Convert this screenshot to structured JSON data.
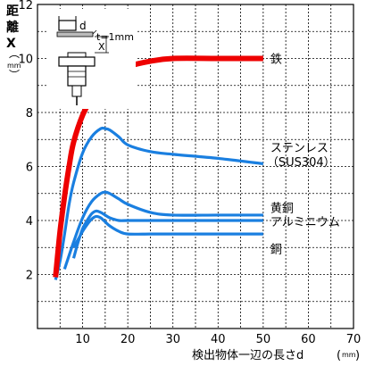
{
  "chart_data": {
    "type": "line",
    "ylabel_chars": [
      "距",
      "離",
      "X"
    ],
    "ylabel_unit": "mm",
    "xlabel_text": "検出物体一辺の長さd",
    "xlabel_unit": "mm",
    "inset_label": "t=1mm",
    "inset_d": "d",
    "inset_x": "X",
    "xlim": [
      0,
      70
    ],
    "ylim": [
      0,
      12
    ],
    "xticks": [
      10,
      20,
      30,
      40,
      50,
      60,
      70
    ],
    "yticks": [
      2,
      4,
      6,
      8,
      10,
      12
    ],
    "grid": true,
    "series": [
      {
        "name": "鉄",
        "color": "#ee0000",
        "x": [
          4,
          5,
          6,
          7,
          8,
          10,
          12,
          15,
          18,
          20,
          25,
          30,
          40,
          50
        ],
        "y": [
          1.9,
          3.6,
          4.9,
          6.0,
          6.9,
          7.9,
          8.5,
          9.1,
          9.5,
          9.7,
          9.9,
          10.0,
          10.0,
          10.0
        ]
      },
      {
        "name": "ステンレス",
        "name2": "（SUS304）",
        "color": "#1a7fe0",
        "x": [
          4,
          5,
          6,
          7,
          8,
          10,
          12,
          14,
          15,
          16,
          18,
          20,
          25,
          30,
          40,
          50
        ],
        "y": [
          1.8,
          2.5,
          3.5,
          4.6,
          5.4,
          6.5,
          7.1,
          7.4,
          7.4,
          7.35,
          7.1,
          6.8,
          6.55,
          6.45,
          6.3,
          6.1
        ]
      },
      {
        "name": "黄銅",
        "color": "#1a7fe0",
        "x": [
          6,
          8,
          10,
          12,
          14,
          15,
          16,
          18,
          20,
          25,
          30,
          40,
          50
        ],
        "y": [
          2.2,
          3.2,
          4.1,
          4.7,
          5.0,
          5.05,
          5.0,
          4.8,
          4.6,
          4.3,
          4.2,
          4.2,
          4.2
        ]
      },
      {
        "name": "アルミニウム",
        "color": "#1a7fe0",
        "x": [
          8,
          9,
          10,
          11,
          12,
          13,
          14,
          15,
          16,
          18,
          20,
          25,
          30,
          40,
          50
        ],
        "y": [
          2.6,
          3.2,
          3.7,
          4.0,
          4.25,
          4.35,
          4.3,
          4.2,
          4.1,
          4.0,
          4.0,
          4.0,
          4.0,
          4.0,
          4.0
        ]
      },
      {
        "name": "銅",
        "color": "#1a7fe0",
        "x": [
          8,
          9,
          10,
          11,
          12,
          13,
          14,
          15,
          16,
          18,
          20,
          25,
          30,
          40,
          50
        ],
        "y": [
          3.0,
          3.3,
          3.6,
          3.85,
          4.05,
          4.15,
          4.1,
          3.95,
          3.8,
          3.6,
          3.5,
          3.5,
          3.5,
          3.5,
          3.5
        ]
      }
    ]
  }
}
